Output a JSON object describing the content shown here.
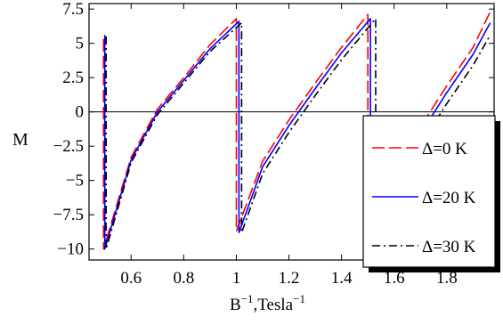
{
  "chart_data": {
    "type": "line",
    "title": "",
    "xlabel": "B",
    "xlabel_sup": "−1",
    "xlabel_tail": ",Tesla",
    "xlabel_tail_sup": "−1",
    "ylabel": "M",
    "xlim": [
      0.44,
      1.98
    ],
    "ylim": [
      -10.8,
      7.9
    ],
    "grid": false,
    "zero_line": true,
    "legend_placement": "right",
    "x_ticks": [
      0.6,
      0.8,
      1,
      1.2,
      1.4,
      1.6,
      1.8
    ],
    "x_tick_labels": [
      "0.6",
      "0.8",
      "1",
      "1.2",
      "1.4",
      "1.6",
      "1.8"
    ],
    "y_ticks": [
      7.5,
      5,
      2.5,
      0,
      -2.5,
      -5,
      -7.5,
      -10
    ],
    "y_tick_labels": [
      "7.5",
      "5",
      "2.5",
      "0",
      "−2.5",
      "−5",
      "−7.5",
      "−10"
    ],
    "series": [
      {
        "name": "Δ=0 K",
        "color": "#ff0000",
        "dash": "long-dash",
        "points": [
          [
            0.495,
            5.3
          ],
          [
            0.495,
            -10.0
          ],
          [
            0.6,
            -3.3
          ],
          [
            0.7,
            0.2
          ],
          [
            0.8,
            2.5
          ],
          [
            0.9,
            4.9
          ],
          [
            1.0,
            6.8
          ],
          [
            1.0,
            -8.7
          ],
          [
            1.1,
            -3.6
          ],
          [
            1.2,
            -0.6
          ],
          [
            1.3,
            2.1
          ],
          [
            1.4,
            4.7
          ],
          [
            1.5,
            7.1
          ],
          [
            1.5,
            -8.7
          ],
          [
            1.6,
            -4.2
          ],
          [
            1.7,
            -1.1
          ],
          [
            1.8,
            1.9
          ],
          [
            1.9,
            4.7
          ],
          [
            1.965,
            7.3
          ]
        ]
      },
      {
        "name": "Δ=20 K",
        "color": "#0000ff",
        "dash": "solid",
        "points": [
          [
            0.5,
            5.6
          ],
          [
            0.5,
            -10.0
          ],
          [
            0.6,
            -3.5
          ],
          [
            0.7,
            0.0
          ],
          [
            0.8,
            2.3
          ],
          [
            0.9,
            4.6
          ],
          [
            1.01,
            6.6
          ],
          [
            1.01,
            -8.8
          ],
          [
            1.1,
            -4.0
          ],
          [
            1.2,
            -1.0
          ],
          [
            1.3,
            1.7
          ],
          [
            1.4,
            4.3
          ],
          [
            1.51,
            6.8
          ],
          [
            1.51,
            -8.8
          ],
          [
            1.6,
            -4.8
          ],
          [
            1.7,
            -1.6
          ],
          [
            1.8,
            1.4
          ],
          [
            1.9,
            4.2
          ],
          [
            1.965,
            6.5
          ]
        ]
      },
      {
        "name": "Δ=30 K",
        "color": "#000000",
        "dash": "dash-dot",
        "points": [
          [
            0.505,
            5.5
          ],
          [
            0.505,
            -10.0
          ],
          [
            0.6,
            -3.7
          ],
          [
            0.7,
            -0.2
          ],
          [
            0.8,
            2.1
          ],
          [
            0.9,
            4.4
          ],
          [
            1.02,
            6.5
          ],
          [
            1.02,
            -8.8
          ],
          [
            1.1,
            -4.5
          ],
          [
            1.2,
            -1.5
          ],
          [
            1.3,
            1.2
          ],
          [
            1.4,
            3.8
          ],
          [
            1.53,
            6.8
          ],
          [
            1.53,
            -8.7
          ],
          [
            1.6,
            -5.6
          ],
          [
            1.7,
            -2.4
          ],
          [
            1.8,
            0.6
          ],
          [
            1.9,
            3.4
          ],
          [
            1.965,
            5.6
          ]
        ]
      }
    ]
  }
}
